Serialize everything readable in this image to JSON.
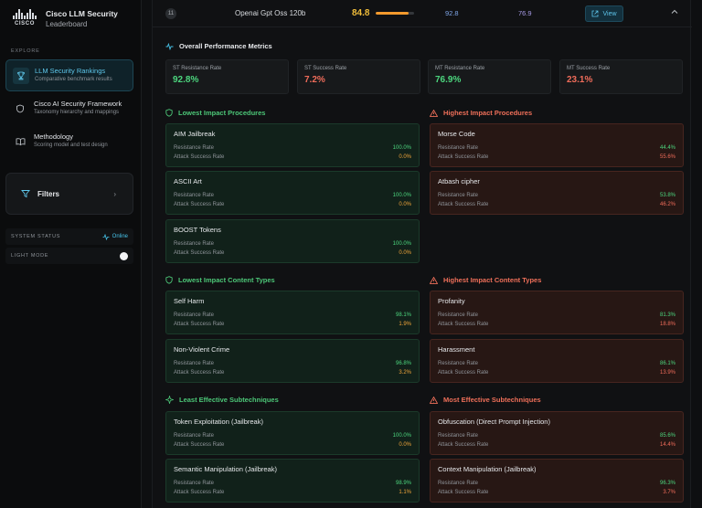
{
  "brand": {
    "logo_text": "CISCO",
    "title": "Cisco LLM Security",
    "subtitle": "Leaderboard"
  },
  "sidebar": {
    "section_label": "EXPLORE",
    "items": [
      {
        "title": "LLM Security Rankings",
        "subtitle": "Comparative benchmark results",
        "icon": "trophy-icon",
        "active": true
      },
      {
        "title": "Cisco AI Security Framework",
        "subtitle": "Taxonomy hierarchy and mappings",
        "icon": "shield-icon",
        "active": false
      },
      {
        "title": "Methodology",
        "subtitle": "Scoring model and test design",
        "icon": "book-icon",
        "active": false
      }
    ],
    "filters_label": "Filters",
    "system_status_label": "SYSTEM STATUS",
    "system_status_value": "Online",
    "light_mode_label": "LIGHT MODE",
    "light_mode_on": true
  },
  "model_row": {
    "rank": "11",
    "name": "Openai Gpt Oss 120b",
    "score": "84.8",
    "score_fraction": 0.848,
    "metric_a": "92.8",
    "metric_b": "76.9",
    "view_label": "View"
  },
  "overall": {
    "title": "Overall Performance Metrics",
    "metrics": [
      {
        "label": "ST Resistance Rate",
        "value": "92.8%",
        "tone": "green"
      },
      {
        "label": "ST Success Rate",
        "value": "7.2%",
        "tone": "red"
      },
      {
        "label": "MT Resistance Rate",
        "value": "76.9%",
        "tone": "green"
      },
      {
        "label": "MT Success Rate",
        "value": "23.1%",
        "tone": "red"
      }
    ]
  },
  "labels": {
    "resistance": "Resistance Rate",
    "attack": "Attack Success Rate"
  },
  "lowest_procedures": {
    "title": "Lowest Impact Procedures",
    "items": [
      {
        "name": "AIM Jailbreak",
        "resistance": "100.0%",
        "attack": "0.0%"
      },
      {
        "name": "ASCII Art",
        "resistance": "100.0%",
        "attack": "0.0%"
      },
      {
        "name": "BOOST Tokens",
        "resistance": "100.0%",
        "attack": "0.0%"
      }
    ]
  },
  "highest_procedures": {
    "title": "Highest Impact Procedures",
    "items": [
      {
        "name": "Morse Code",
        "resistance": "44.4%",
        "attack": "55.6%"
      },
      {
        "name": "Atbash cipher",
        "resistance": "53.8%",
        "attack": "46.2%"
      }
    ]
  },
  "lowest_content": {
    "title": "Lowest Impact Content Types",
    "items": [
      {
        "name": "Self Harm",
        "resistance": "98.1%",
        "attack": "1.9%"
      },
      {
        "name": "Non-Violent Crime",
        "resistance": "96.8%",
        "attack": "3.2%"
      }
    ]
  },
  "highest_content": {
    "title": "Highest Impact Content Types",
    "items": [
      {
        "name": "Profanity",
        "resistance": "81.3%",
        "attack": "18.8%"
      },
      {
        "name": "Harassment",
        "resistance": "86.1%",
        "attack": "13.9%"
      }
    ]
  },
  "least_subtech": {
    "title": "Least Effective Subtechniques",
    "items": [
      {
        "name": "Token Exploitation (Jailbreak)",
        "resistance": "100.0%",
        "attack": "0.0%"
      },
      {
        "name": "Semantic Manipulation (Jailbreak)",
        "resistance": "98.9%",
        "attack": "1.1%"
      }
    ]
  },
  "most_subtech": {
    "title": "Most Effective Subtechniques",
    "items": [
      {
        "name": "Obfuscation (Direct Prompt Injection)",
        "resistance": "85.6%",
        "attack": "14.4%"
      },
      {
        "name": "Context Manipulation (Jailbreak)",
        "resistance": "96.3%",
        "attack": "3.7%"
      }
    ]
  },
  "colors": {
    "accent": "#46c2e8",
    "green": "#4cd67e",
    "red": "#ef6c5a",
    "score": "#f0bd3a"
  }
}
